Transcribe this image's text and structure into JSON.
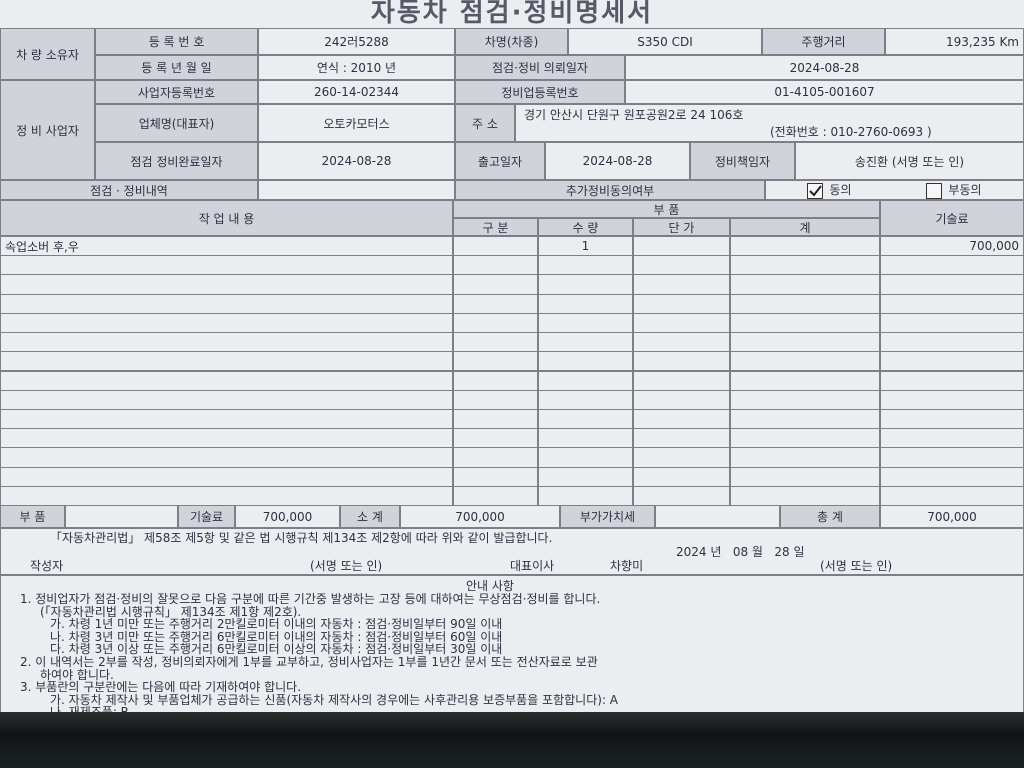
{
  "title": "자동차 점검·정비명세서",
  "owner": {
    "label": "차 량 소유자",
    "reg_no_label": "등 록 번 호",
    "reg_no": "242러5288",
    "model_label": "차명(차종)",
    "model": "S350 CDI",
    "mileage_label": "주행거리",
    "mileage": "193,235 Km",
    "reg_date_label": "등 록 년 월 일",
    "reg_date": "연식 : 2010 년",
    "request_date_label": "점검·정비 의뢰일자",
    "request_date": "2024-08-28"
  },
  "business": {
    "label": "정 비 사업자",
    "biz_no_label": "사업자등록번호",
    "biz_no": "260-14-02344",
    "shop_no_label": "정비업등록번호",
    "shop_no": "01-4105-001607",
    "name_label": "업체명(대표자)",
    "name": "오토카모터스",
    "address_label": "주 소",
    "address": "경기 안산시 단원구 원포공원2로 24 106호",
    "phone": "(전화번호 : 010-2760-0693 )",
    "done_date_label": "점검 정비완료일자",
    "done_date": "2024-08-28",
    "release_label": "출고일자",
    "release_date": "2024-08-28",
    "manager_label": "정비책임자",
    "manager": "송진환 (서명 또는 인)"
  },
  "details": {
    "label": "점검 · 정비내역",
    "consent_label": "추가정비동의여부",
    "agree": "동의",
    "disagree": "부동의"
  },
  "table": {
    "work_header": "작 업 내 용",
    "parts_header": "부 품",
    "labor_header": "기술료",
    "sub_headers": [
      "구 분",
      "수 량",
      "단 가",
      "계"
    ],
    "rows": [
      {
        "work": "속업소버 후,우",
        "quantity": "1",
        "labor": "700,000"
      }
    ]
  },
  "totals": {
    "parts_label": "부 품",
    "labor_label": "기술료",
    "labor": "700,000",
    "subtotal_label": "소 계",
    "subtotal": "700,000",
    "vat_label": "부가가치세",
    "total_label": "총 계",
    "total": "700,000"
  },
  "issue": {
    "statement": "「자동차관리법」 제58조 제5항 및 같은 법 시행규칙 제134조 제2항에 따라 위와 같이 발급합니다.",
    "date": "2024 년   08 월   28 일",
    "writer_label": "작성자",
    "writer_sign": "(서명 또는 인)",
    "ceo_label": "대표이사",
    "ceo": "차향미",
    "ceo_sign": "(서명 또는 인)"
  },
  "notes": {
    "title": "안내 사항",
    "lines": [
      "1. 정비업자가 점검·정비의 잘못으로 다음 구분에 따른 기간중 발생하는 고장 등에 대하여는 무상점검·정비를 합니다.",
      "(「자동차관리법 시행규칙」 제134조 제1항 제2호).",
      "가. 차령 1년 미만 또는 주행거리 2만킬로미터 이내의 자동차 : 점검·정비일부터 90일 이내",
      "나. 차령 3년 미만 또는 주행거리 6만킬로미터 이내의 자동차 : 점검·정비일부터 60일 이내",
      "다. 차령 3년 이상 또는 주행거리 6만킬로미터 이상의 자동차 : 점검·정비일부터 30일 이내",
      "2. 이 내역서는 2부를 작성, 정비의뢰자에게 1부를 교부하고, 정비사업자는 1부를 1년간 문서 또는 전산자료로 보관",
      "하여야 합니다.",
      "3. 부품란의 구분란에는 다음에 따라 기재하여야 합니다.",
      "가. 자동차 제작사 및 부품업체가 공급하는 신품(자동차 제작사의 경우에는 사후관리용 보증부품을 포함합니다): A",
      "나. 재제조품: R"
    ]
  }
}
